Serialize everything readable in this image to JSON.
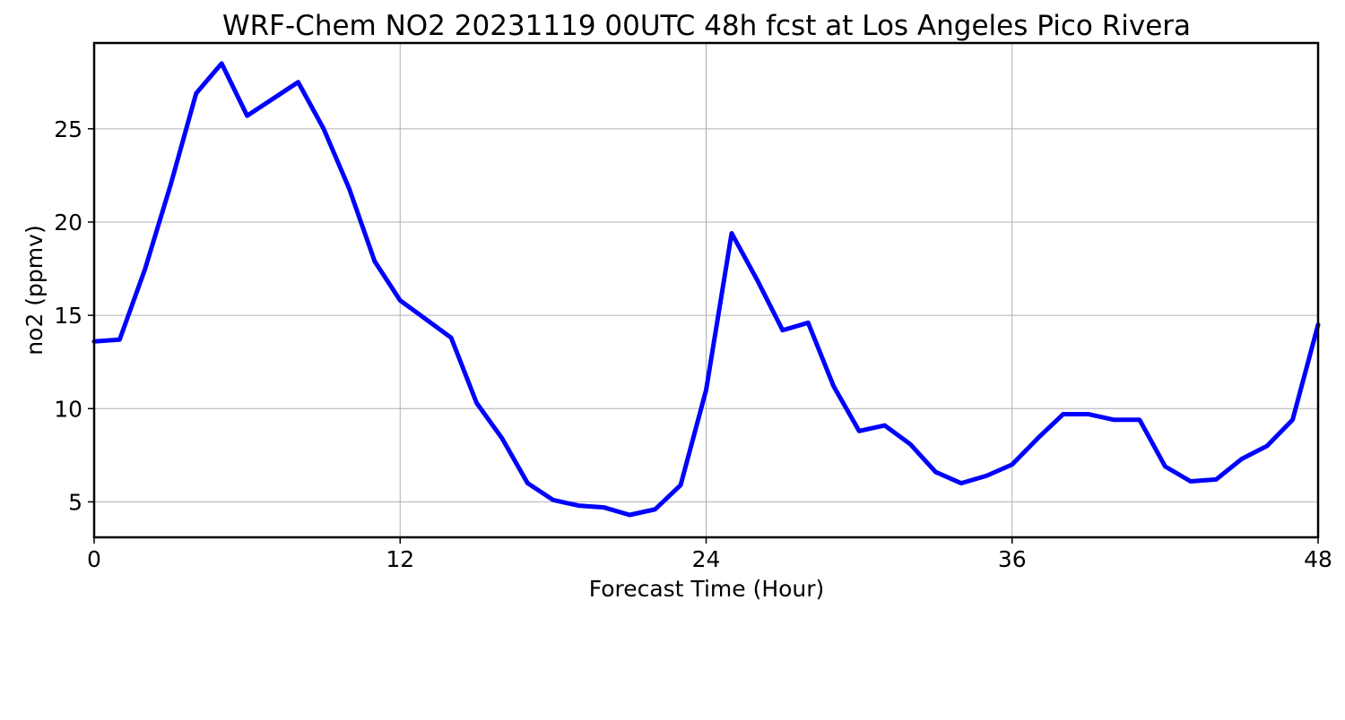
{
  "chart_data": {
    "type": "line",
    "title": "WRF-Chem NO2  20231119 00UTC 48h fcst at Los Angeles Pico Rivera",
    "xlabel": "Forecast Time (Hour)",
    "ylabel": "no2  (ppmv)",
    "xlim": [
      0,
      48
    ],
    "ylim": [
      3.1,
      29.6
    ],
    "xticks": [
      0,
      12,
      24,
      36,
      48
    ],
    "yticks": [
      5,
      10,
      15,
      20,
      25
    ],
    "grid": true,
    "legend": "none",
    "series": [
      {
        "color": "#0000ff",
        "x": [
          0,
          1,
          2,
          3,
          4,
          5,
          6,
          7,
          8,
          9,
          10,
          11,
          12,
          13,
          14,
          15,
          16,
          17,
          18,
          19,
          20,
          21,
          22,
          23,
          24,
          25,
          26,
          27,
          28,
          29,
          30,
          31,
          32,
          33,
          34,
          35,
          36,
          37,
          38,
          39,
          40,
          41,
          42,
          43,
          44,
          45,
          46,
          47,
          48
        ],
        "values": [
          13.6,
          13.7,
          17.5,
          22.0,
          26.9,
          28.5,
          25.7,
          26.6,
          27.5,
          25.0,
          21.8,
          17.9,
          15.8,
          14.8,
          13.8,
          10.3,
          8.4,
          6.0,
          5.1,
          4.8,
          4.7,
          4.3,
          4.6,
          5.9,
          11.0,
          19.4,
          16.9,
          14.2,
          14.6,
          11.2,
          8.8,
          9.1,
          8.1,
          6.6,
          6.0,
          6.4,
          7.0,
          8.4,
          9.7,
          9.7,
          9.4,
          9.4,
          6.9,
          6.1,
          6.2,
          7.3,
          8.0,
          9.4,
          14.5
        ]
      }
    ]
  }
}
